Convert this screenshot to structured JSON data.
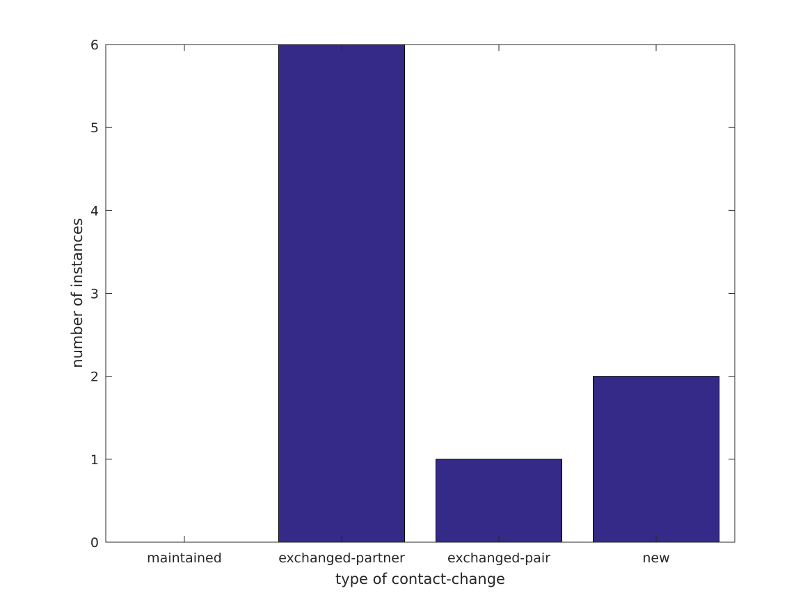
{
  "chart_data": {
    "type": "bar",
    "categories": [
      "maintained",
      "exchanged-partner",
      "exchanged-pair",
      "new"
    ],
    "values": [
      0,
      6,
      1,
      2
    ],
    "xlabel": "type of contact-change",
    "ylabel": "number of instances",
    "ylim": [
      0,
      6
    ],
    "yticks": [
      0,
      1,
      2,
      3,
      4,
      5,
      6
    ],
    "grid": false,
    "bar_color": "#352a87",
    "edge_color": "#000000"
  }
}
